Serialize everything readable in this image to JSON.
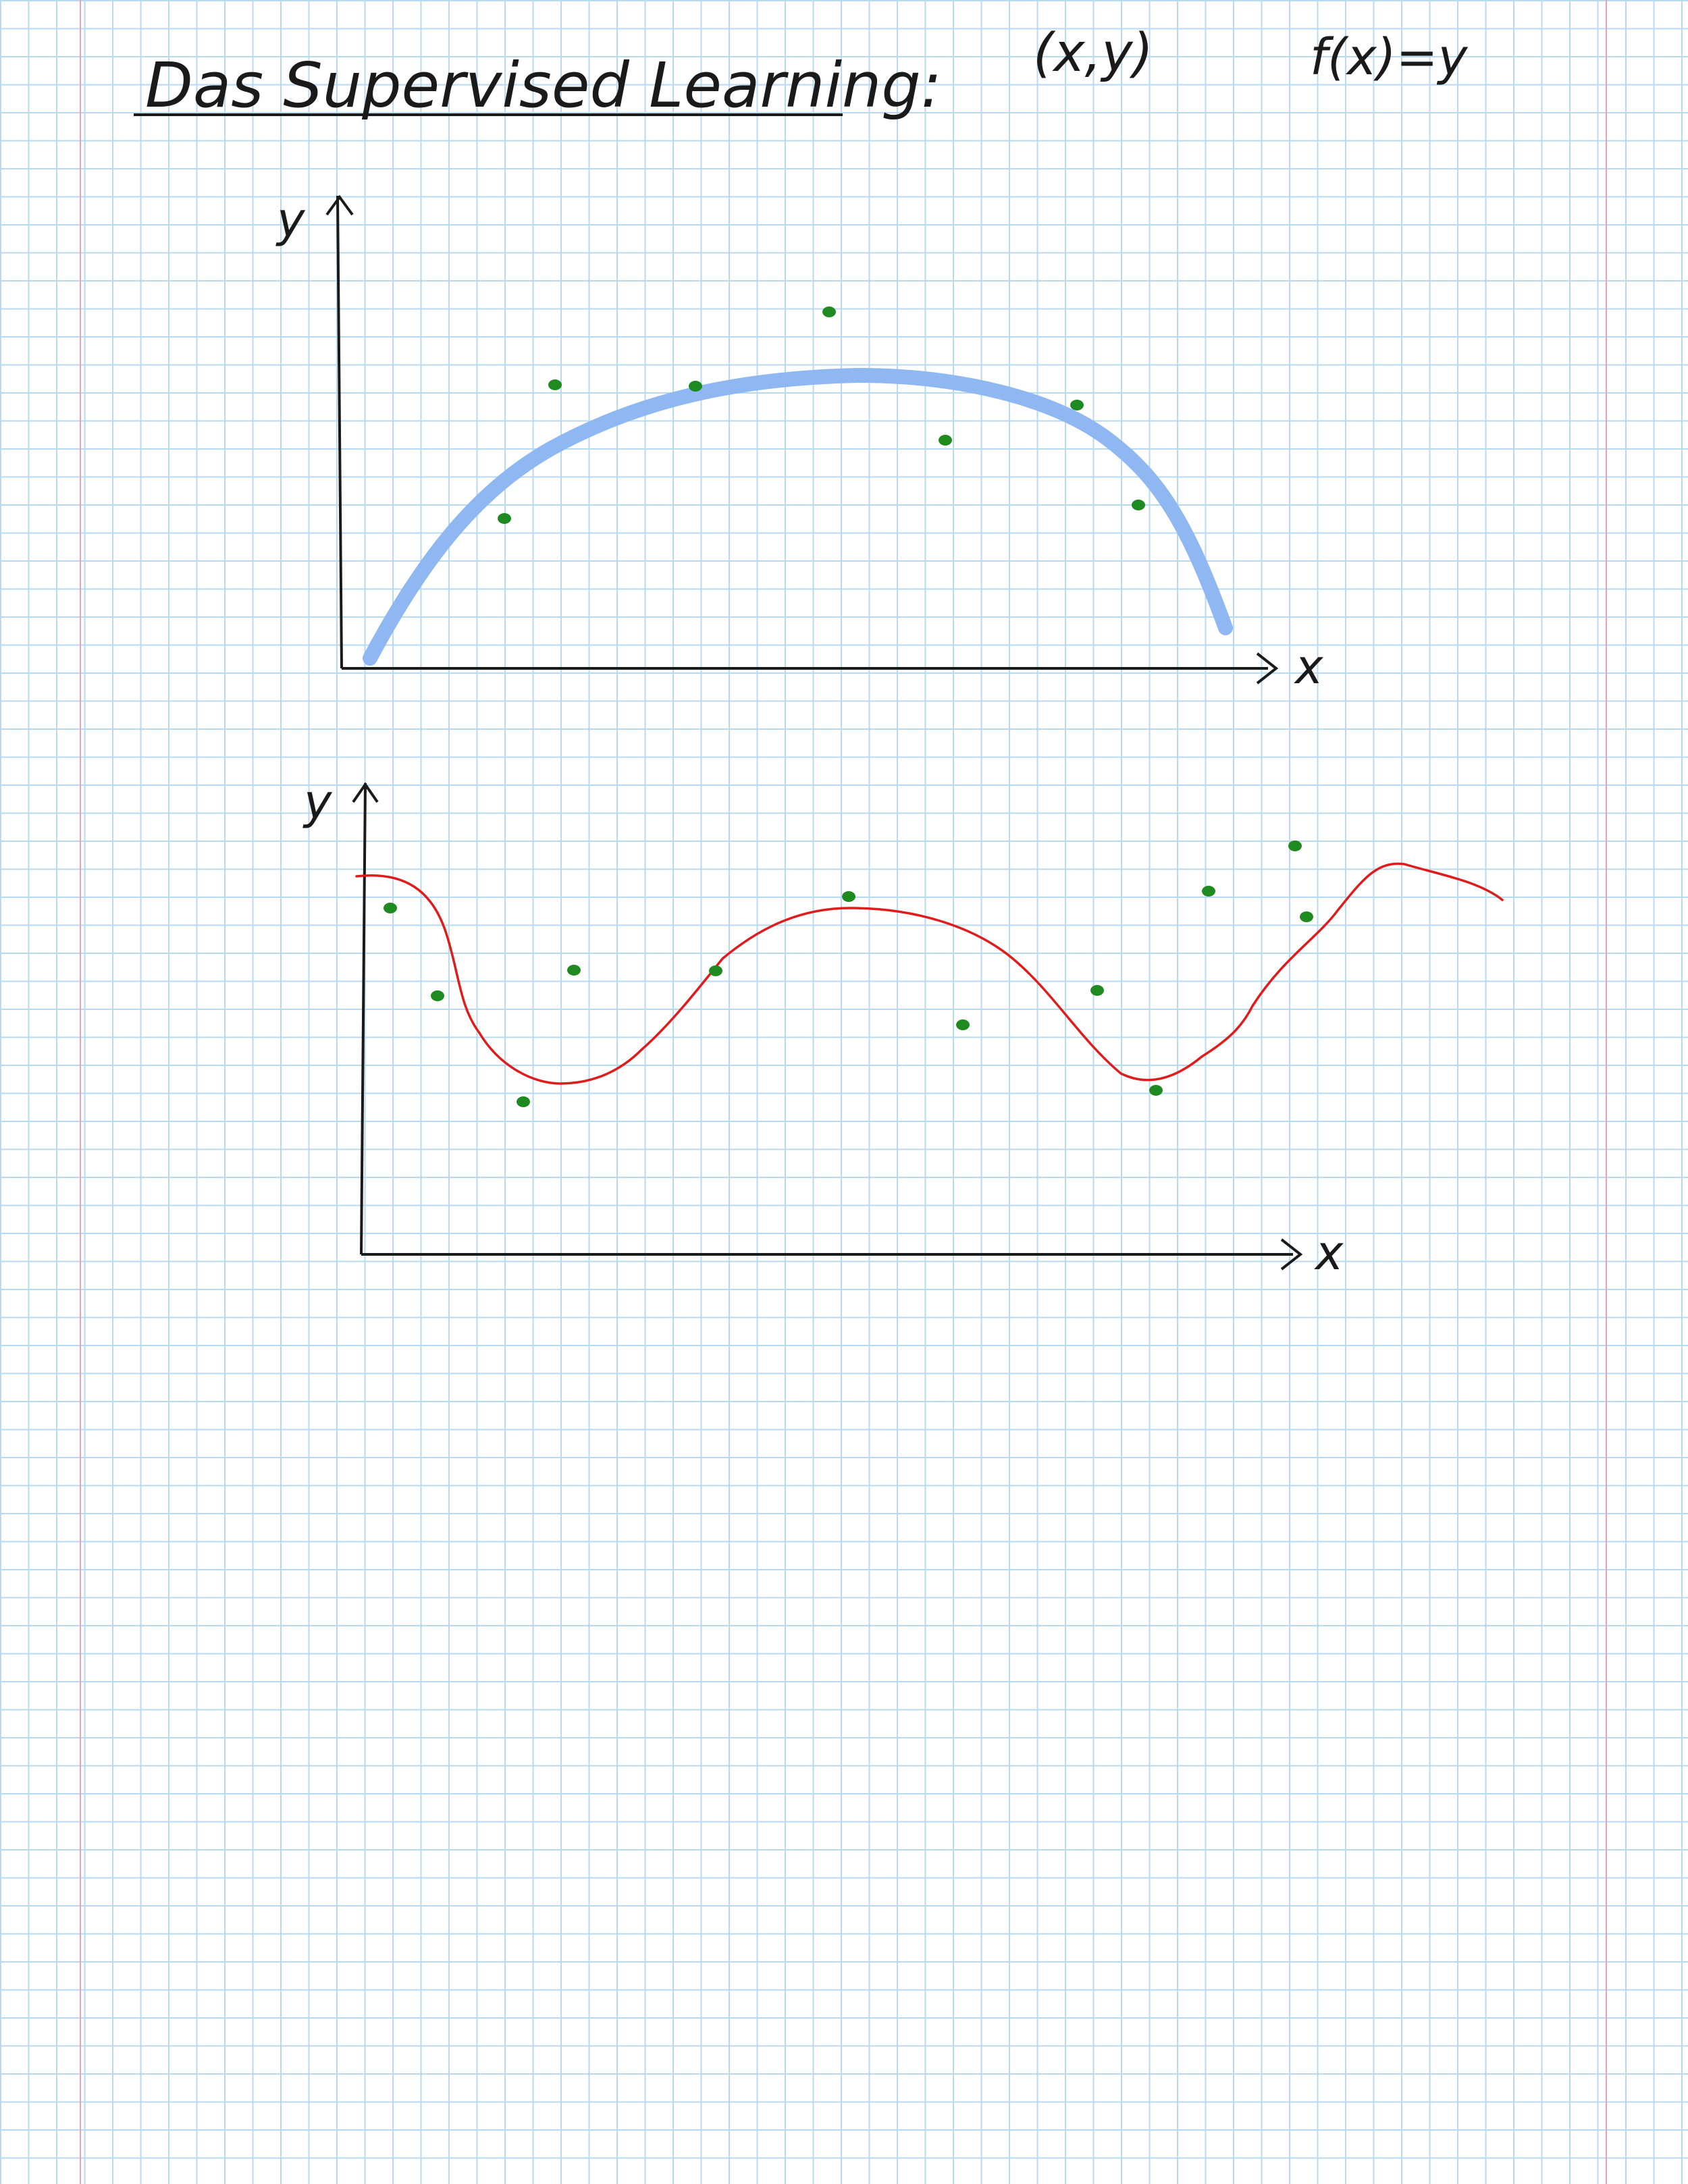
{
  "heading": {
    "title": "Das Supervised Learning:",
    "pair": "(x,y)",
    "function": "f(x)=y"
  },
  "figures": [
    {
      "y_label": "y",
      "x_label": "x",
      "fit_curve_color": "#8fb8f2",
      "point_color": "#1f8a1f"
    },
    {
      "y_label": "y",
      "x_label": "x",
      "fit_curve_color": "#e01b1b",
      "point_color": "#1f8a1f"
    }
  ],
  "colors": {
    "grid": "#b7daf0",
    "margin": "#e8a3b6",
    "ink": "#1a1a1a"
  }
}
